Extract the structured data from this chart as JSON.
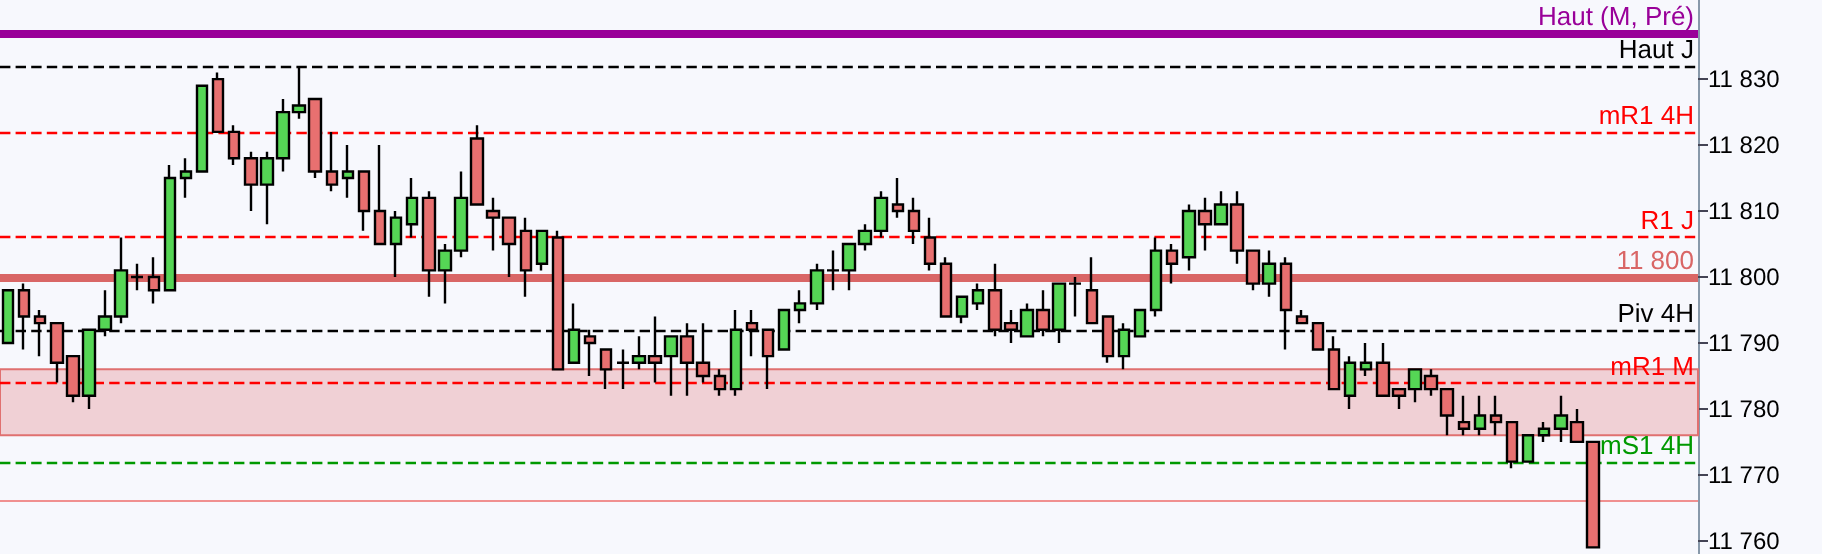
{
  "chart_data": {
    "type": "candlestick",
    "categories": [
      null,
      null,
      null,
      null,
      null,
      null,
      null,
      null,
      null,
      null,
      null,
      null,
      null,
      null,
      null,
      null,
      null,
      null,
      null,
      null,
      null,
      null,
      null,
      null,
      null,
      null,
      null,
      null,
      null,
      null,
      null,
      null,
      null,
      null,
      null,
      null,
      null,
      null,
      null,
      null,
      null,
      null,
      null,
      null,
      null,
      null,
      null,
      null,
      null,
      null,
      null,
      null,
      null,
      null,
      null,
      null,
      null,
      null,
      null,
      null,
      null,
      null,
      null,
      null,
      null,
      null,
      null,
      null,
      null,
      null,
      null,
      null,
      null,
      null,
      null,
      null,
      null,
      null,
      null,
      null,
      null,
      null,
      null,
      null,
      null,
      null,
      null,
      null,
      null,
      null,
      null,
      null,
      null,
      null,
      null,
      null,
      null,
      null,
      null,
      null,
      null,
      null,
      null,
      null,
      null
    ],
    "ohlc": [
      [
        11790,
        11798,
        11790,
        11798
      ],
      [
        11798,
        11799,
        11789,
        11794
      ],
      [
        11794,
        11795,
        11788,
        11793
      ],
      [
        11793,
        11793,
        11784,
        11787
      ],
      [
        11788,
        11788,
        11781,
        11782
      ],
      [
        11782,
        11792,
        11780,
        11792
      ],
      [
        11792,
        11798,
        11791,
        11794
      ],
      [
        11794,
        11806,
        11793,
        11801
      ],
      [
        11800,
        11802,
        11798,
        11800
      ],
      [
        11800,
        11803,
        11796,
        11798
      ],
      [
        11798,
        11817,
        11798,
        11815
      ],
      [
        11815,
        11818,
        11812,
        11816
      ],
      [
        11816,
        11829,
        11816,
        11829
      ],
      [
        11830,
        11831,
        11822,
        11822
      ],
      [
        11822,
        11823,
        11817,
        11818
      ],
      [
        11818,
        11819,
        11810,
        11814
      ],
      [
        11814,
        11819,
        11808,
        11818
      ],
      [
        11818,
        11827,
        11816,
        11825
      ],
      [
        11825,
        11832,
        11824,
        11826
      ],
      [
        11827,
        11827,
        11815,
        11816
      ],
      [
        11816,
        11822,
        11813,
        11814
      ],
      [
        11815,
        11820,
        11812,
        11816
      ],
      [
        11816,
        11816,
        11807,
        11810
      ],
      [
        11810,
        11820,
        11805,
        11805
      ],
      [
        11805,
        11810,
        11800,
        11809
      ],
      [
        11808,
        11815,
        11806,
        11812
      ],
      [
        11812,
        11813,
        11797,
        11801
      ],
      [
        11801,
        11805,
        11796,
        11804
      ],
      [
        11804,
        11816,
        11803,
        11812
      ],
      [
        11821,
        11823,
        11811,
        11811
      ],
      [
        11810,
        11812,
        11804,
        11809
      ],
      [
        11809,
        11809,
        11800,
        11805
      ],
      [
        11807,
        11809,
        11797,
        11801
      ],
      [
        11802,
        11807,
        11801,
        11807
      ],
      [
        11806,
        11807,
        11786,
        11786
      ],
      [
        11787,
        11796,
        11787,
        11792
      ],
      [
        11791,
        11792,
        11785,
        11790
      ],
      [
        11789,
        11789,
        11783,
        11786
      ],
      [
        11787,
        11789,
        11783,
        11787
      ],
      [
        11787,
        11791,
        11786,
        11788
      ],
      [
        11788,
        11794,
        11784,
        11787
      ],
      [
        11788,
        11791,
        11782,
        11791
      ],
      [
        11791,
        11793,
        11782,
        11787
      ],
      [
        11787,
        11793,
        11784,
        11785
      ],
      [
        11785,
        11786,
        11782,
        11783
      ],
      [
        11783,
        11795,
        11782,
        11792
      ],
      [
        11793,
        11795,
        11788,
        11792
      ],
      [
        11792,
        11792,
        11783,
        11788
      ],
      [
        11789,
        11795,
        11789,
        11795
      ],
      [
        11795,
        11798,
        11793,
        11796
      ],
      [
        11796,
        11802,
        11795,
        11801
      ],
      [
        11801,
        11804,
        11798,
        11801
      ],
      [
        11801,
        11805,
        11798,
        11805
      ],
      [
        11805,
        11808,
        11804,
        11807
      ],
      [
        11807,
        11813,
        11806,
        11812
      ],
      [
        11811,
        11815,
        11809,
        11810
      ],
      [
        11810,
        11812,
        11805,
        11807
      ],
      [
        11806,
        11809,
        11801,
        11802
      ],
      [
        11802,
        11803,
        11794,
        11794
      ],
      [
        11794,
        11797,
        11793,
        11797
      ],
      [
        11796,
        11799,
        11795,
        11798
      ],
      [
        11798,
        11802,
        11791,
        11792
      ],
      [
        11793,
        11795,
        11790,
        11792
      ],
      [
        11791,
        11796,
        11791,
        11795
      ],
      [
        11795,
        11798,
        11791,
        11792
      ],
      [
        11792,
        11799,
        11790,
        11799
      ],
      [
        11799,
        11800,
        11794,
        11799
      ],
      [
        11798,
        11803,
        11793,
        11793
      ],
      [
        11794,
        11794,
        11787,
        11788
      ],
      [
        11788,
        11793,
        11786,
        11792
      ],
      [
        11791,
        11795,
        11791,
        11795
      ],
      [
        11795,
        11806,
        11794,
        11804
      ],
      [
        11804,
        11805,
        11799,
        11802
      ],
      [
        11803,
        11811,
        11801,
        11810
      ],
      [
        11810,
        11812,
        11804,
        11808
      ],
      [
        11808,
        11813,
        11808,
        11811
      ],
      [
        11811,
        11813,
        11802,
        11804
      ],
      [
        11804,
        11804,
        11798,
        11799
      ],
      [
        11799,
        11804,
        11797,
        11802
      ],
      [
        11802,
        11803,
        11789,
        11795
      ],
      [
        11794,
        11795,
        11793,
        11793
      ],
      [
        11793,
        11793,
        11789,
        11789
      ],
      [
        11789,
        11791,
        11783,
        11783
      ],
      [
        11782,
        11788,
        11780,
        11787
      ],
      [
        11786,
        11790,
        11785,
        11787
      ],
      [
        11787,
        11790,
        11782,
        11782
      ],
      [
        11783,
        11783,
        11780,
        11782
      ],
      [
        11783,
        11786,
        11781,
        11786
      ],
      [
        11785,
        11786,
        11782,
        11783
      ],
      [
        11783,
        11783,
        11776,
        11779
      ],
      [
        11778,
        11782,
        11776,
        11777
      ],
      [
        11777,
        11782,
        11776,
        11779
      ],
      [
        11779,
        11782,
        11776,
        11778
      ],
      [
        11778,
        11778,
        11771,
        11772
      ],
      [
        11772,
        11776,
        11772,
        11776
      ],
      [
        11776,
        11778,
        11775,
        11777
      ],
      [
        11777,
        11782,
        11775,
        11779
      ],
      [
        11778,
        11780,
        11775,
        11775
      ],
      [
        11775,
        11775,
        11759,
        11759
      ],
      null,
      null,
      null,
      null,
      null,
      null
    ],
    "colors": [
      "#55d655",
      "#e87070",
      "#e87070",
      "#e87070",
      "#e87070",
      "#55d655",
      "#55d655",
      "#55d655",
      "#000000",
      "#e87070",
      "#55d655",
      "#55d655",
      "#55d655",
      "#e87070",
      "#e87070",
      "#e87070",
      "#55d655",
      "#55d655",
      "#55d655",
      "#e87070",
      "#e87070",
      "#55d655",
      "#e87070",
      "#e87070",
      "#55d655",
      "#55d655",
      "#e87070",
      "#55d655",
      "#55d655",
      "#e87070",
      "#e87070",
      "#e87070",
      "#e87070",
      "#55d655",
      "#e87070",
      "#55d655",
      "#e87070",
      "#e87070",
      "#000000",
      "#55d655",
      "#e87070",
      "#55d655",
      "#e87070",
      "#e87070",
      "#e87070",
      "#55d655",
      "#e87070",
      "#e87070",
      "#55d655",
      "#55d655",
      "#55d655",
      "#000000",
      "#55d655",
      "#55d655",
      "#55d655",
      "#e87070",
      "#e87070",
      "#e87070",
      "#e87070",
      "#55d655",
      "#55d655",
      "#e87070",
      "#e87070",
      "#55d655",
      "#e87070",
      "#55d655",
      "#000000",
      "#e87070",
      "#e87070",
      "#55d655",
      "#55d655",
      "#55d655",
      "#e87070",
      "#55d655",
      "#e87070",
      "#55d655",
      "#e87070",
      "#e87070",
      "#55d655",
      "#e87070",
      "#e87070",
      "#e87070",
      "#e87070",
      "#55d655",
      "#55d655",
      "#e87070",
      "#e87070",
      "#55d655",
      "#e87070",
      "#e87070",
      "#e87070",
      "#55d655",
      "#e87070",
      "#e87070",
      "#55d655",
      "#55d655",
      "#55d655",
      "#e87070",
      "#e87070",
      null,
      null,
      null,
      null,
      null,
      null
    ],
    "ylim": [
      11758,
      11842
    ],
    "yticks": [
      {
        "value": 11760,
        "label": "11 760"
      },
      {
        "value": 11770,
        "label": "11 770"
      },
      {
        "value": 11780,
        "label": "11 780"
      },
      {
        "value": 11790,
        "label": "11 790"
      },
      {
        "value": 11800,
        "label": "11 800"
      },
      {
        "value": 11810,
        "label": "11 810"
      },
      {
        "value": 11820,
        "label": "11 820"
      },
      {
        "value": 11830,
        "label": "11 830"
      }
    ],
    "tick_labels": "y",
    "grid": false,
    "ref_lines": [
      {
        "axis": "y",
        "value": 11837,
        "label": "Haut (M, Pré)",
        "color": "#990099",
        "line_style": "solid"
      },
      {
        "axis": "y",
        "value": 11832,
        "label": "Haut J",
        "color": "#000000",
        "line_style": "dashed"
      },
      {
        "axis": "y",
        "value": 11822,
        "label": "mR1 4H",
        "color": "#ff0000",
        "line_style": "dashed"
      },
      {
        "axis": "y",
        "value": 11806,
        "label": "R1 J",
        "color": "#ff0000",
        "line_style": "dashed"
      },
      {
        "axis": "y",
        "value": 11800,
        "label": "11 800",
        "color": "#d96666",
        "line_style": "solid"
      },
      {
        "axis": "y",
        "value": 11792,
        "label": "Piv 4H",
        "color": "#000000",
        "line_style": "dashed"
      },
      {
        "axis": "y",
        "value": 11784,
        "label": "mR1 M",
        "color": "#ff0000",
        "line_style": "dashed"
      },
      {
        "axis": "y",
        "value": 11772,
        "label": "mS1 4H",
        "color": "#009900",
        "line_style": "dashed"
      },
      {
        "axis": "y",
        "value": 11766,
        "color": "#f09090",
        "line_style": "solid"
      }
    ],
    "bands": [
      {
        "axis": "y",
        "from": 11776,
        "to": 11786,
        "color": "#f0d0d5"
      }
    ]
  }
}
